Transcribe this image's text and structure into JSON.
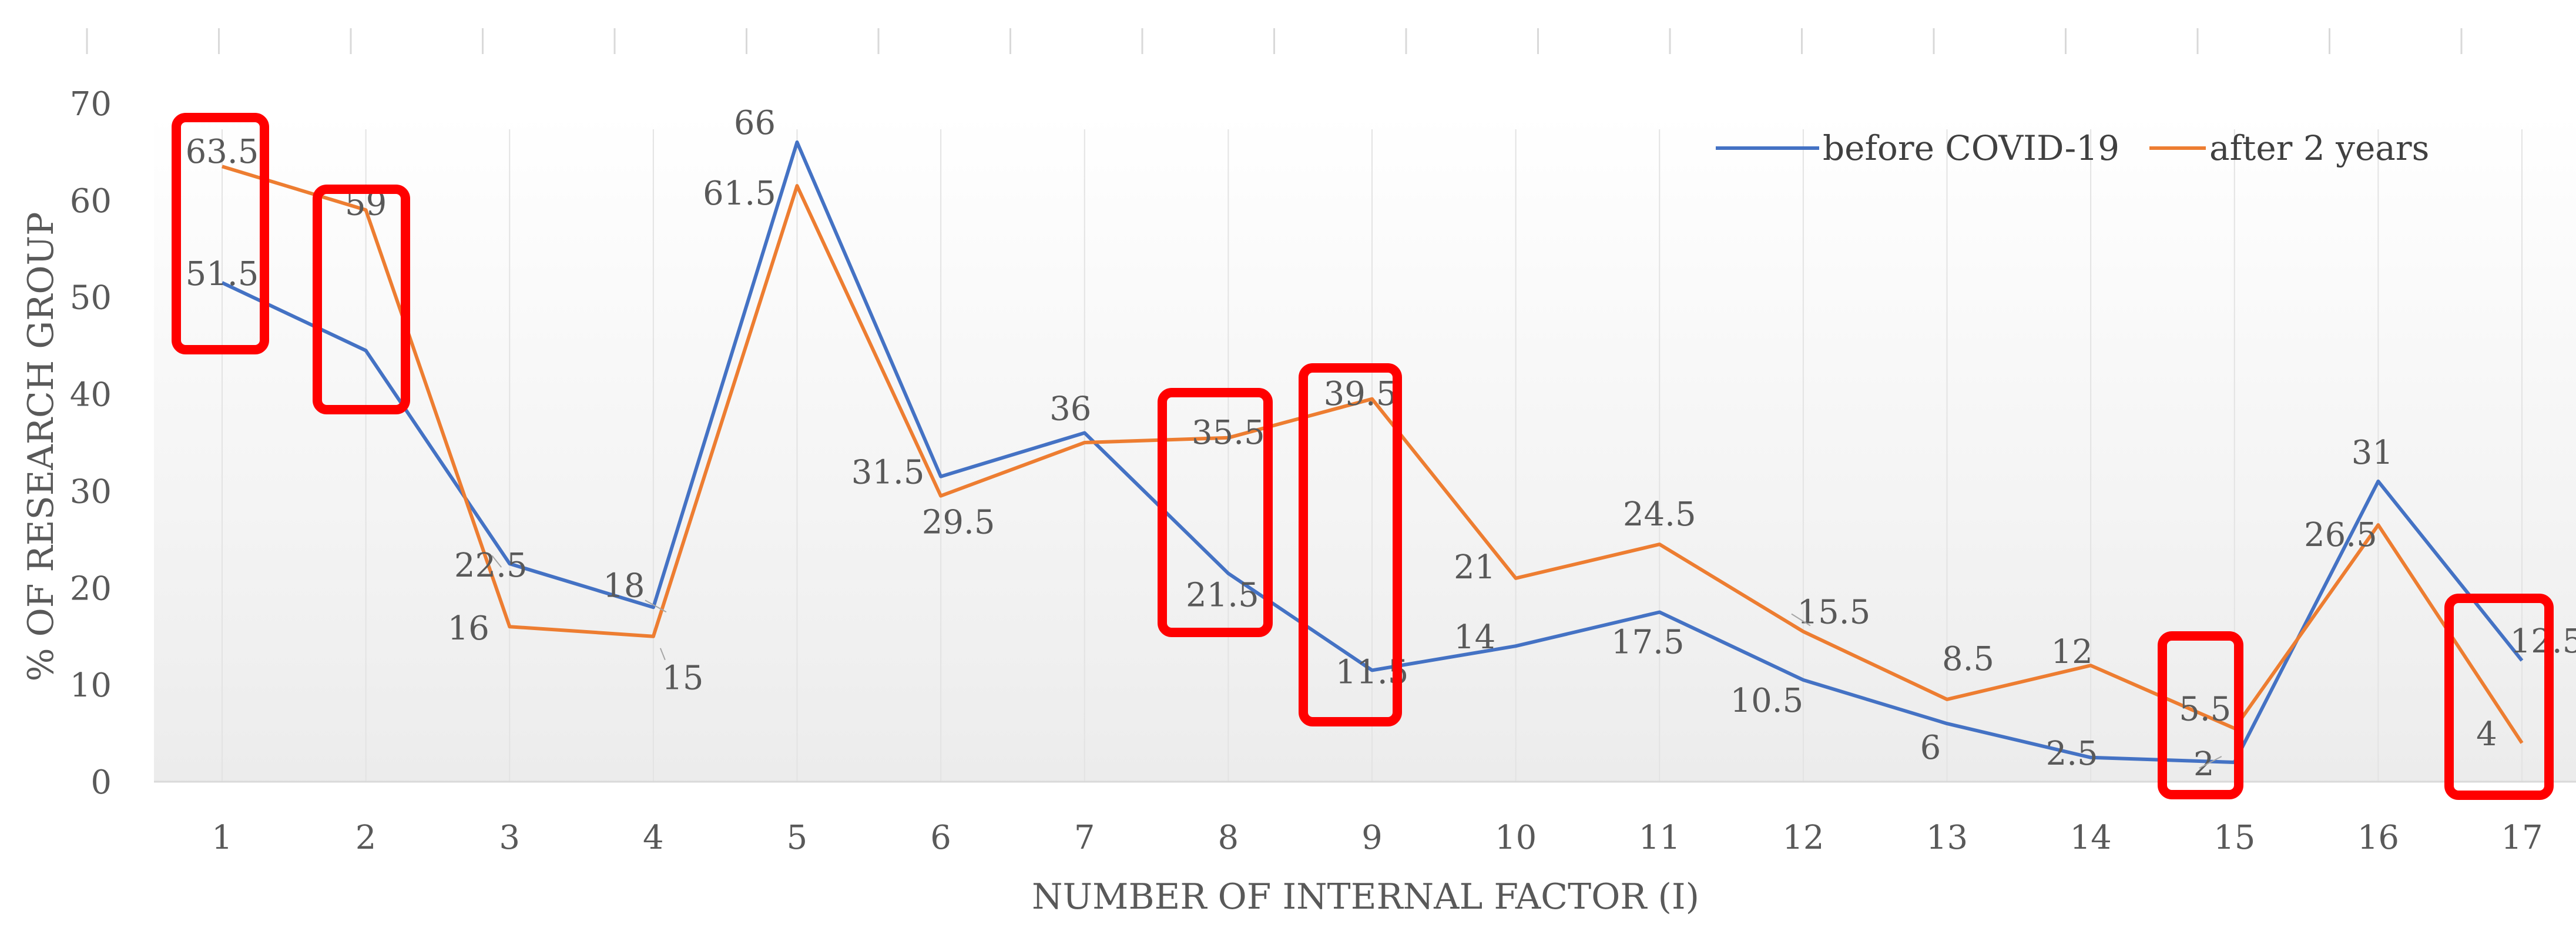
{
  "chart_data": {
    "type": "line",
    "categories": [
      "1",
      "2",
      "3",
      "4",
      "5",
      "6",
      "7",
      "8",
      "9",
      "10",
      "11",
      "12",
      "13",
      "14",
      "15",
      "16",
      "17"
    ],
    "series": [
      {
        "name": "before COVID-19",
        "color": "#4472C4",
        "values": [
          51.5,
          44.5,
          22.5,
          18,
          66,
          31.5,
          36,
          21.5,
          11.5,
          14,
          17.5,
          10.5,
          6,
          2.5,
          2,
          31,
          12.5
        ],
        "labels": [
          "51.5",
          "",
          "22.5",
          "18",
          "66",
          "31.5",
          "36",
          "21.5",
          "11.5",
          "14",
          "17.5",
          "10.5",
          "6",
          "2.5",
          "2",
          "31",
          "12.5"
        ]
      },
      {
        "name": "after 2 years",
        "color": "#ED7D31",
        "values": [
          63.5,
          59,
          16,
          15,
          61.5,
          29.5,
          35,
          35.5,
          39.5,
          21,
          24.5,
          15.5,
          8.5,
          12,
          5.5,
          26.5,
          4
        ],
        "labels": [
          "63.5",
          "59",
          "16",
          "15",
          "61.5",
          "29.5",
          "",
          "35.5",
          "39.5",
          "21",
          "24.5",
          "15.5",
          "8.5",
          "12",
          "5.5",
          "26.5",
          "4"
        ]
      }
    ],
    "xlabel": "NUMBER OF INTERNAL FACTOR (I)",
    "ylabel": "% OF RESEARCH GROUP",
    "ylim": [
      0,
      70
    ],
    "yticks": [
      "0",
      "10",
      "20",
      "30",
      "40",
      "50",
      "60",
      "70"
    ],
    "grid": "vertical",
    "legend": "top-right",
    "highlight_color": "#FF0000",
    "highlighted_categories": [
      "1",
      "2",
      "8",
      "9",
      "15",
      "17"
    ]
  }
}
